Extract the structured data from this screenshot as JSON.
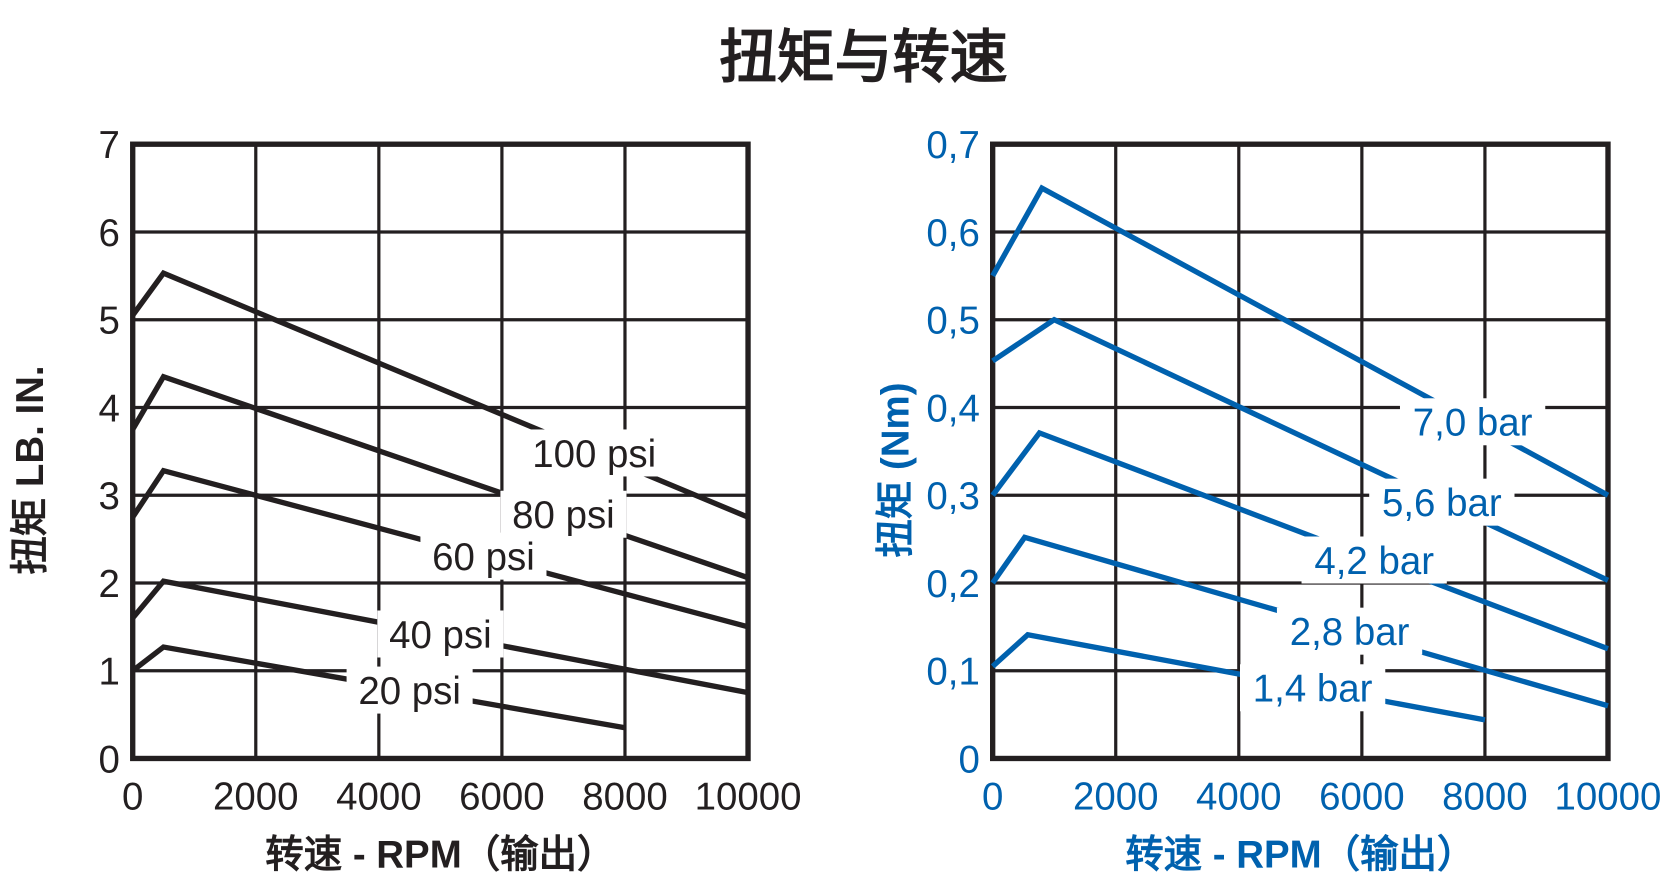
{
  "title": "扭矩与转速",
  "colors": {
    "left": "#231f20",
    "right": "#0061ae",
    "grid": "#231f20"
  },
  "chart_data": [
    {
      "type": "line",
      "xlabel": "转速 - RPM（输出）",
      "ylabel": "扭矩 LB. IN.",
      "xlim": [
        0,
        10000
      ],
      "ylim": [
        0,
        7
      ],
      "xticks": [
        "0",
        "2000",
        "4000",
        "6000",
        "8000",
        "10000"
      ],
      "yticks": [
        "0",
        "1",
        "2",
        "3",
        "4",
        "5",
        "6",
        "7"
      ],
      "grid": true,
      "series": [
        {
          "name": "100 psi",
          "x": [
            0,
            500,
            10000
          ],
          "y": [
            5.05,
            5.53,
            2.75
          ]
        },
        {
          "name": "80 psi",
          "x": [
            0,
            500,
            10000
          ],
          "y": [
            3.75,
            4.35,
            2.06
          ]
        },
        {
          "name": "60 psi",
          "x": [
            0,
            500,
            10000
          ],
          "y": [
            2.75,
            3.28,
            1.5
          ]
        },
        {
          "name": "40 psi",
          "x": [
            0,
            500,
            10000
          ],
          "y": [
            1.6,
            2.02,
            0.75
          ]
        },
        {
          "name": "20 psi",
          "x": [
            0,
            500,
            8000
          ],
          "y": [
            1.0,
            1.27,
            0.35
          ]
        }
      ]
    },
    {
      "type": "line",
      "xlabel": "转速 - RPM（输出）",
      "ylabel": "扭矩 (Nm)",
      "xlim": [
        0,
        10000
      ],
      "ylim": [
        0,
        0.7
      ],
      "xticks": [
        "0",
        "2000",
        "4000",
        "6000",
        "8000",
        "10000"
      ],
      "yticks": [
        "0",
        "0,1",
        "0,2",
        "0,3",
        "0,4",
        "0,5",
        "0,6",
        "0,7"
      ],
      "grid": true,
      "series": [
        {
          "name": "7,0 bar",
          "x": [
            0,
            800,
            10000
          ],
          "y": [
            0.55,
            0.65,
            0.3
          ]
        },
        {
          "name": "5,6 bar",
          "x": [
            0,
            1000,
            10000
          ],
          "y": [
            0.453,
            0.5,
            0.203
          ]
        },
        {
          "name": "4,2 bar",
          "x": [
            0,
            760,
            10000
          ],
          "y": [
            0.3,
            0.371,
            0.125
          ]
        },
        {
          "name": "2,8 bar",
          "x": [
            0,
            520,
            10000
          ],
          "y": [
            0.2,
            0.252,
            0.06
          ]
        },
        {
          "name": "1,4 bar",
          "x": [
            0,
            570,
            8000
          ],
          "y": [
            0.105,
            0.141,
            0.044
          ]
        }
      ]
    }
  ]
}
